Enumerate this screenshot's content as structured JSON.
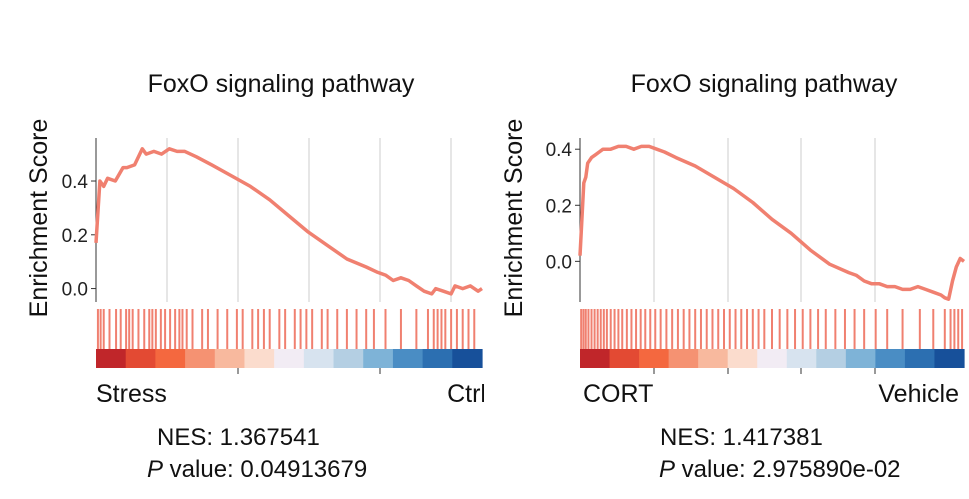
{
  "chart_data": [
    {
      "type": "line",
      "title": "FoxO signaling pathway",
      "ylabel": "Enrichment Score",
      "ylim": [
        -0.05,
        0.56
      ],
      "yticks": [
        "0.0",
        "0.2",
        "0.4"
      ],
      "ytick_values": [
        0.0,
        0.2,
        0.4
      ],
      "xlim": [
        0,
        100
      ],
      "grid": true,
      "series": [
        {
          "color": "#f08070",
          "x": [
            0,
            1,
            2,
            3,
            5,
            7,
            8,
            10,
            12,
            13,
            15,
            17,
            19,
            21,
            23,
            26,
            30,
            35,
            40,
            45,
            50,
            55,
            60,
            65,
            70,
            73,
            75,
            77,
            79,
            81,
            83,
            85,
            87,
            88,
            90,
            92,
            93,
            95,
            97,
            99,
            100
          ],
          "y": [
            0.17,
            0.4,
            0.38,
            0.41,
            0.4,
            0.45,
            0.45,
            0.46,
            0.52,
            0.5,
            0.51,
            0.5,
            0.52,
            0.51,
            0.51,
            0.49,
            0.46,
            0.42,
            0.38,
            0.33,
            0.27,
            0.21,
            0.16,
            0.11,
            0.08,
            0.06,
            0.05,
            0.03,
            0.04,
            0.03,
            0.01,
            -0.01,
            -0.02,
            0.0,
            -0.01,
            -0.02,
            0.01,
            0.0,
            0.01,
            -0.01,
            0.0
          ]
        }
      ],
      "hit_positions": [
        0.5,
        1.2,
        2.0,
        3.5,
        5.2,
        6.4,
        7.8,
        8.6,
        9.5,
        11.0,
        12.5,
        13.8,
        14.6,
        15.5,
        16.8,
        17.9,
        19.2,
        20.5,
        21.6,
        22.4,
        23.5,
        25.0,
        27.5,
        29.0,
        31.5,
        34.0,
        36.5,
        38.0,
        40.5,
        42.0,
        43.5,
        45.0,
        47.5,
        49.0,
        51.5,
        53.0,
        54.5,
        56.0,
        58.5,
        60.0,
        62.5,
        65.0,
        67.5,
        70.0,
        72.0,
        75.0,
        79.0,
        83.0,
        86.0,
        87.5,
        88.5,
        89.5,
        90.5,
        92.0,
        93.5,
        95.0,
        96.5,
        98.0
      ],
      "rank_gradient": [
        "#c0262a",
        "#e34a33",
        "#f4683f",
        "#f59272",
        "#f8b99e",
        "#fbdccd",
        "#f2ecf4",
        "#d7e3ef",
        "#b4cfe3",
        "#7eb3d7",
        "#4a8dc4",
        "#2c6fb1",
        "#17509a"
      ],
      "x_left_label": "Stress",
      "x_right_label": "Ctrl",
      "nes_label": "NES: 1.367541",
      "p_italic": "P",
      "p_label": " value: 0.04913679"
    },
    {
      "type": "line",
      "title": "FoxO signaling pathway",
      "ylabel": "Enrichment Score",
      "ylim": [
        -0.145,
        0.44
      ],
      "yticks": [
        "0.0",
        "0.2",
        "0.4"
      ],
      "ytick_values": [
        0.0,
        0.2,
        0.4
      ],
      "xlim": [
        0,
        100
      ],
      "grid": true,
      "series": [
        {
          "color": "#f08070",
          "x": [
            0,
            0.5,
            1,
            1.5,
            2,
            3,
            4,
            5,
            6,
            8,
            10,
            12,
            14,
            16,
            18,
            20,
            22,
            25,
            30,
            35,
            40,
            45,
            50,
            55,
            60,
            65,
            70,
            72,
            74,
            76,
            78,
            80,
            82,
            84,
            86,
            88,
            90,
            92,
            94,
            95,
            96,
            97,
            98,
            99,
            100
          ],
          "y": [
            0.02,
            0.15,
            0.28,
            0.3,
            0.35,
            0.37,
            0.38,
            0.39,
            0.4,
            0.4,
            0.41,
            0.41,
            0.4,
            0.41,
            0.41,
            0.4,
            0.39,
            0.37,
            0.34,
            0.3,
            0.26,
            0.21,
            0.15,
            0.1,
            0.04,
            -0.01,
            -0.04,
            -0.05,
            -0.07,
            -0.08,
            -0.08,
            -0.09,
            -0.09,
            -0.1,
            -0.1,
            -0.09,
            -0.1,
            -0.11,
            -0.12,
            -0.13,
            -0.135,
            -0.07,
            -0.02,
            0.01,
            0.0
          ]
        }
      ],
      "hit_positions": [
        0.3,
        0.9,
        1.5,
        2.2,
        3.0,
        3.8,
        4.6,
        5.4,
        6.2,
        7.0,
        8.0,
        9.0,
        10.0,
        11.0,
        12.2,
        13.4,
        14.6,
        15.8,
        17.0,
        18.3,
        19.6,
        21.0,
        22.5,
        24.0,
        25.5,
        27.0,
        28.5,
        30.0,
        31.5,
        33.0,
        34.5,
        36.0,
        37.5,
        39.0,
        40.5,
        42.0,
        43.5,
        45.0,
        46.5,
        48.0,
        50.0,
        52.0,
        54.0,
        56.0,
        58.0,
        60.0,
        62.0,
        64.0,
        66.5,
        69.0,
        71.5,
        74.0,
        77.0,
        80.0,
        84.0,
        88.5,
        92.0,
        95.0,
        96.5,
        97.5,
        98.5,
        99.5
      ],
      "rank_gradient": [
        "#c0262a",
        "#e34a33",
        "#f4683f",
        "#f59272",
        "#f8b99e",
        "#fbdccd",
        "#f2ecf4",
        "#d7e3ef",
        "#b4cfe3",
        "#7eb3d7",
        "#4a8dc4",
        "#2c6fb1",
        "#17509a"
      ],
      "x_left_label": "CORT",
      "x_right_label": "Vehicle",
      "nes_label": "NES: 1.417381",
      "p_italic": "P",
      "p_label": " value: 2.975890e-02"
    }
  ]
}
